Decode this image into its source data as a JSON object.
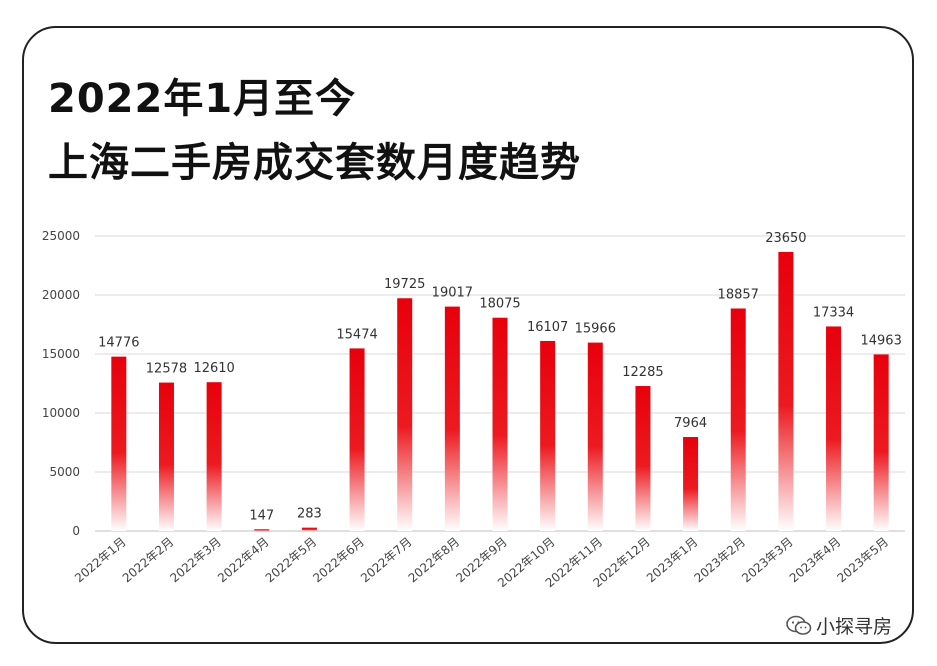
{
  "header": {
    "line1": "2022年1月至今",
    "line2": "上海二手房成交套数月度趋势"
  },
  "watermark": {
    "text": "小探寻房",
    "icon": "wechat-icon"
  },
  "colors": {
    "bar_top": "#e8000b",
    "bar_bottom": "#ffffff",
    "grid": "#d9d9d9",
    "text": "#333333"
  },
  "chart_data": {
    "type": "bar",
    "categories": [
      "2022年1月",
      "2022年2月",
      "2022年3月",
      "2022年4月",
      "2022年5月",
      "2022年6月",
      "2022年7月",
      "2022年8月",
      "2022年9月",
      "2022年10月",
      "2022年11月",
      "2022年12月",
      "2023年1月",
      "2023年2月",
      "2023年3月",
      "2023年4月",
      "2023年5月"
    ],
    "values": [
      14776,
      12578,
      12610,
      147,
      283,
      15474,
      19725,
      19017,
      18075,
      16107,
      15966,
      12285,
      7964,
      18857,
      23650,
      17334,
      14963
    ],
    "yticks": [
      0,
      5000,
      10000,
      15000,
      20000,
      25000
    ],
    "ylim": [
      0,
      25000
    ],
    "grid": true,
    "legend": "none"
  }
}
